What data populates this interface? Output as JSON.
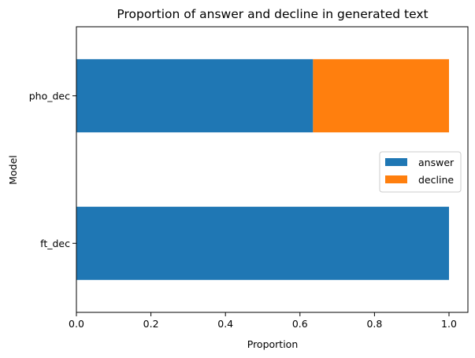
{
  "chart_data": {
    "type": "bar",
    "orientation": "horizontal",
    "stacked": true,
    "title": "Proportion of answer and decline in generated text",
    "xlabel": "Proportion",
    "ylabel": "Model",
    "categories": [
      "ft_dec",
      "pho_dec"
    ],
    "series": [
      {
        "name": "answer",
        "values": [
          1.0,
          0.635
        ],
        "color": "#1f77b4"
      },
      {
        "name": "decline",
        "values": [
          0.0,
          0.365
        ],
        "color": "#ff7f0e"
      }
    ],
    "xlim": [
      0,
      1.05
    ],
    "xticks": [
      "0.0",
      "0.2",
      "0.4",
      "0.6",
      "0.8",
      "1.0"
    ],
    "grid": false,
    "legend": "center-right"
  }
}
